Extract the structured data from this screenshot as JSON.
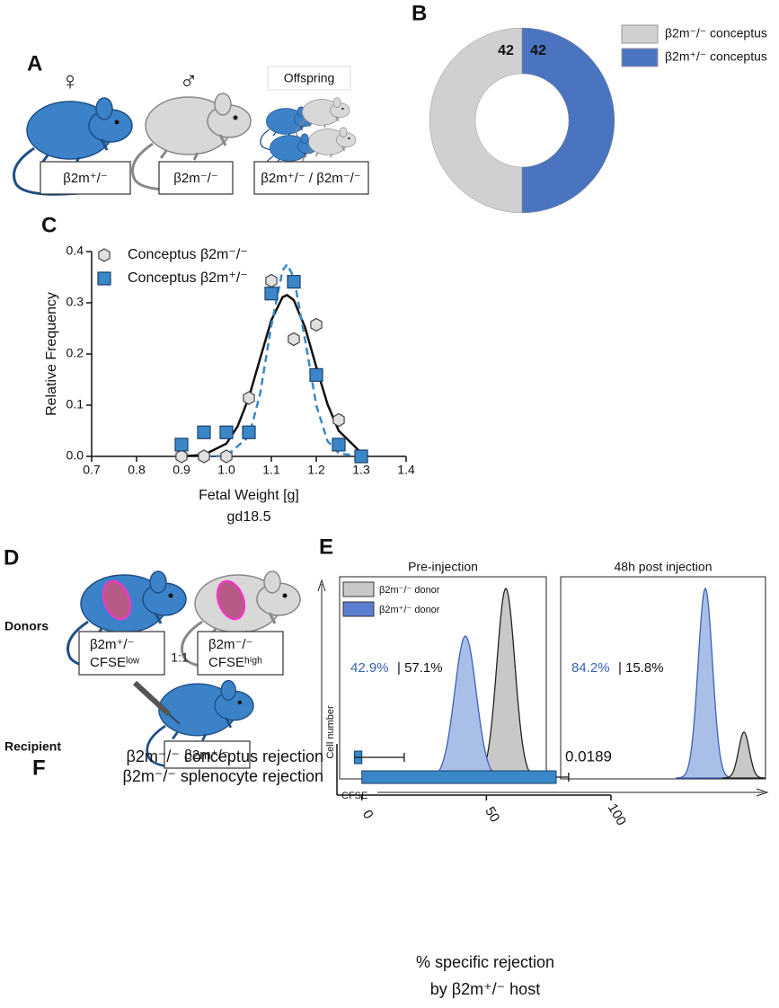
{
  "panels": {
    "A": {
      "label": "A",
      "female": "♀",
      "male": "♂",
      "offspring": "Offspring",
      "boxes": [
        "β2m⁺/⁻",
        "β2m⁻/⁻",
        "β2m⁺/⁻ / β2m⁻/⁻"
      ]
    },
    "B": {
      "label": "B"
    },
    "C": {
      "label": "C"
    },
    "D": {
      "label": "D",
      "donors": "Donors",
      "recipient": "Recipient",
      "box1": [
        "β2m⁺/⁻",
        "CFSEˡᵒʷ"
      ],
      "ratio": "1:1",
      "box2": [
        "β2m⁻/⁻",
        "CFSEʰⁱᵍʰ"
      ],
      "box3": "β2m⁺/⁻"
    },
    "E": {
      "label": "E",
      "titles": [
        "Pre-injection",
        "48h post injection"
      ],
      "legend": [
        "β2m⁻/⁻ donor",
        "β2m⁺/⁻ donor"
      ],
      "pre": [
        "42.9%",
        "| 57.1%"
      ],
      "post": [
        "84.2%",
        "| 15.8%"
      ],
      "ylabel": "Cell number",
      "xlabel": "CFSE"
    },
    "F": {
      "label": "F"
    }
  },
  "chart_data": [
    {
      "type": "pie",
      "categories": [
        "β2m⁻/⁻ conceptus",
        "β2m⁺/⁻ conceptus"
      ],
      "values": [
        42,
        42
      ],
      "colors": [
        "#d0d0d0",
        "#4a74c0"
      ],
      "donut": true
    },
    {
      "type": "scatter",
      "xlabel": [
        "Fetal Weight [g]",
        "gd18.5"
      ],
      "ylabel": "Relative Frequency",
      "xlim": [
        0.7,
        1.4
      ],
      "ylim": [
        0,
        0.4
      ],
      "xticks": [
        0.7,
        0.8,
        0.9,
        {
          "value": 1,
          "label": "1.0"
        },
        1.1,
        1.2,
        1.3,
        1.4
      ],
      "yticks": [
        {
          "value": 0,
          "label": "0.0"
        },
        0.1,
        0.2,
        0.3,
        0.4
      ],
      "series": [
        {
          "name": "Conceptus β2m⁻/⁻",
          "color": "#e0e0e0",
          "marker": "hexagon",
          "x": [
            0.9,
            0.95,
            1.0,
            1.05,
            1.1,
            1.15,
            1.2,
            1.25,
            1.3
          ],
          "values": [
            0,
            0,
            0,
            0.114,
            0.343,
            0.229,
            0.257,
            0.071,
            0
          ]
        },
        {
          "name": "Conceptus β2m⁺/⁻",
          "color": "#3a87c8",
          "marker": "square",
          "x": [
            0.9,
            0.95,
            1.0,
            1.05,
            1.1,
            1.15,
            1.2,
            1.25,
            1.3
          ],
          "values": [
            0.023,
            0.047,
            0.047,
            0.047,
            0.318,
            0.341,
            0.159,
            0.023,
            0
          ]
        }
      ],
      "fits": [
        {
          "color": "#111111",
          "dashed": false,
          "x": [
            0.9,
            0.95,
            1.0,
            1.025,
            1.05,
            1.075,
            1.1,
            1.125,
            1.135,
            1.15,
            1.175,
            1.2,
            1.225,
            1.25,
            1.3
          ],
          "values": [
            0,
            0.003,
            0.025,
            0.059,
            0.115,
            0.191,
            0.266,
            0.311,
            0.315,
            0.305,
            0.252,
            0.175,
            0.102,
            0.05,
            0.007
          ]
        },
        {
          "color": "#3a87c8",
          "dashed": true,
          "x": [
            0.95,
            1.0,
            1.05,
            1.075,
            1.1,
            1.125,
            1.135,
            1.15,
            1.175,
            1.2,
            1.225,
            1.25,
            1.3
          ],
          "values": [
            0,
            0.001,
            0.039,
            0.122,
            0.256,
            0.363,
            0.375,
            0.35,
            0.228,
            0.1,
            0.03,
            0.006,
            0
          ]
        }
      ]
    },
    {
      "type": "hbar",
      "categories": [
        "β2m⁻/⁻ conceptus rejection",
        "β2m⁻/⁻ splenocyte rejection"
      ],
      "values": [
        -3,
        78
      ],
      "errors": [
        20,
        5
      ],
      "color": "#3a87c8",
      "xlim": [
        -10,
        100
      ],
      "xticks": [
        0,
        50,
        100
      ],
      "annotation": "0.0189",
      "xlabel": [
        "% specific rejection",
        "by β2m⁺/⁻ host"
      ]
    }
  ]
}
